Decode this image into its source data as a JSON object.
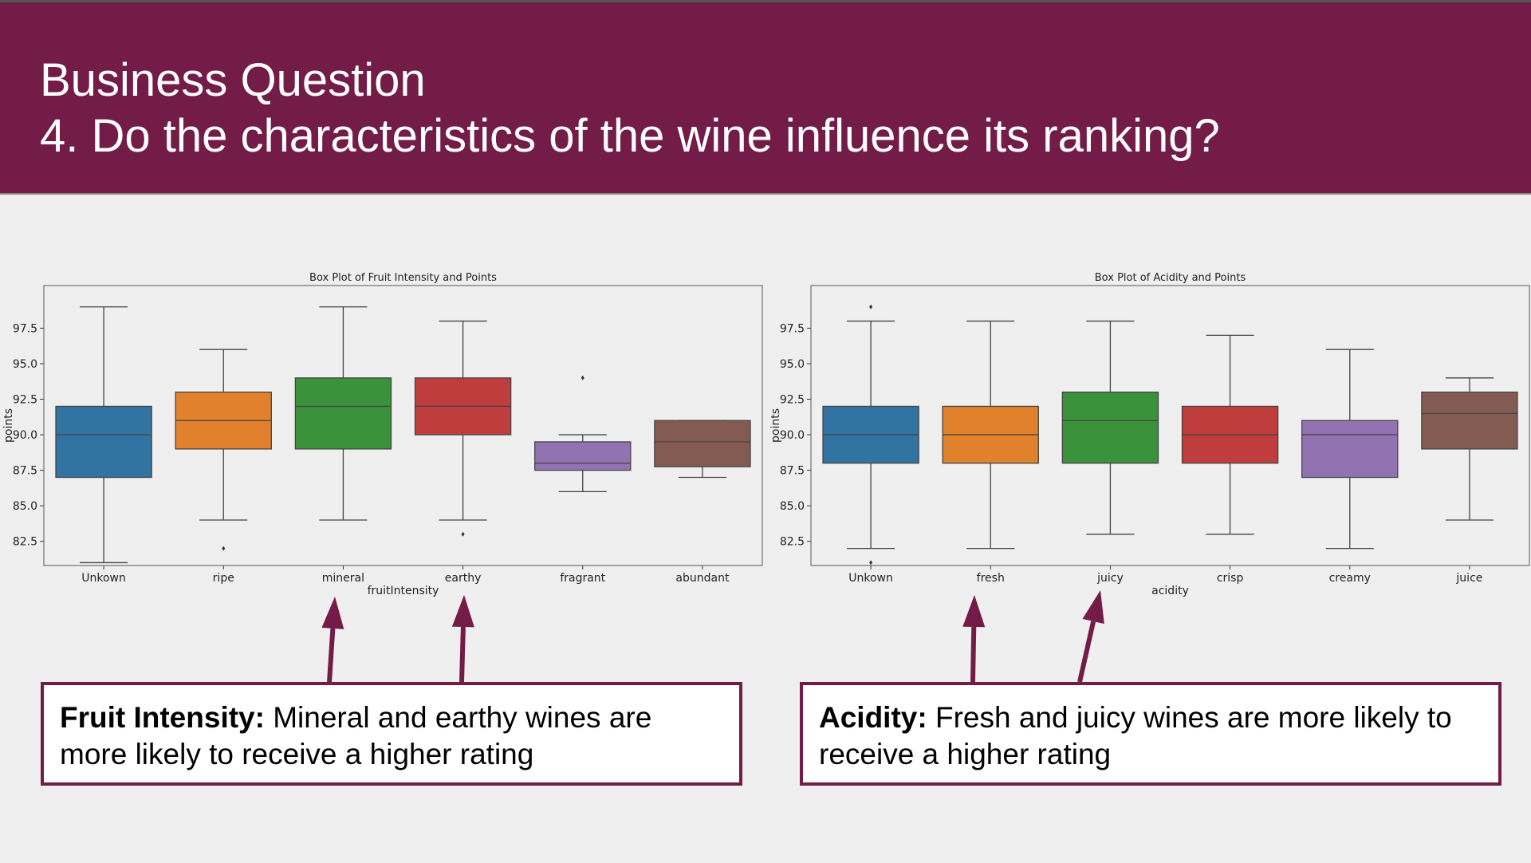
{
  "header": {
    "line1": "Business Question",
    "line2": "4.  Do the characteristics of the wine influence its ranking?"
  },
  "callouts": [
    {
      "bold": "Fruit Intensity:",
      "text": " Mineral and earthy wines are more likely to receive a higher rating"
    },
    {
      "bold": "Acidity:",
      "text": " Fresh and juicy wines are more likely to receive a higher rating"
    }
  ],
  "colors": {
    "header_bg": "#721c47",
    "arrow": "#721c47",
    "palette": [
      "#3274a1",
      "#e1812c",
      "#3a923a",
      "#c03d3e",
      "#9372b2",
      "#845b53"
    ]
  },
  "chart_data": [
    {
      "type": "box",
      "title": "Box Plot of Fruit Intensity and Points",
      "xlabel": "fruitIntensity",
      "ylabel": "points",
      "ylim": [
        80.8,
        100.5
      ],
      "yticks": [
        82.5,
        85.0,
        87.5,
        90.0,
        92.5,
        95.0,
        97.5
      ],
      "ytick_labels": [
        "82.5",
        "85.0",
        "87.5",
        "90.0",
        "92.5",
        "95.0",
        "97.5"
      ],
      "categories": [
        "Unkown",
        "ripe",
        "mineral",
        "earthy",
        "fragrant",
        "abundant"
      ],
      "boxes": [
        {
          "whislo": 81,
          "q1": 87,
          "med": 90,
          "q3": 92,
          "whishi": 99,
          "fliers": []
        },
        {
          "whislo": 84,
          "q1": 89,
          "med": 91,
          "q3": 93,
          "whishi": 96,
          "fliers": [
            82
          ]
        },
        {
          "whislo": 84,
          "q1": 89,
          "med": 92,
          "q3": 94,
          "whishi": 99,
          "fliers": []
        },
        {
          "whislo": 84,
          "q1": 90,
          "med": 92,
          "q3": 94,
          "whishi": 98,
          "fliers": [
            83
          ]
        },
        {
          "whislo": 86,
          "q1": 87.5,
          "med": 88,
          "q3": 89.5,
          "whishi": 90,
          "fliers": [
            94
          ]
        },
        {
          "whislo": 87,
          "q1": 87.75,
          "med": 89.5,
          "q3": 91,
          "whishi": 91,
          "fliers": []
        }
      ]
    },
    {
      "type": "box",
      "title": "Box Plot of Acidity and Points",
      "xlabel": "acidity",
      "ylabel": "points",
      "ylim": [
        80.8,
        100.5
      ],
      "yticks": [
        82.5,
        85.0,
        87.5,
        90.0,
        92.5,
        95.0,
        97.5
      ],
      "ytick_labels": [
        "82.5",
        "85.0",
        "87.5",
        "90.0",
        "92.5",
        "95.0",
        "97.5"
      ],
      "categories": [
        "Unkown",
        "fresh",
        "juicy",
        "crisp",
        "creamy",
        "juice"
      ],
      "boxes": [
        {
          "whislo": 82,
          "q1": 88,
          "med": 90,
          "q3": 92,
          "whishi": 98,
          "fliers": [
            81,
            99
          ]
        },
        {
          "whislo": 82,
          "q1": 88,
          "med": 90,
          "q3": 92,
          "whishi": 98,
          "fliers": []
        },
        {
          "whislo": 83,
          "q1": 88,
          "med": 91,
          "q3": 93,
          "whishi": 98,
          "fliers": []
        },
        {
          "whislo": 83,
          "q1": 88,
          "med": 90,
          "q3": 92,
          "whishi": 97,
          "fliers": []
        },
        {
          "whislo": 82,
          "q1": 87,
          "med": 90,
          "q3": 91,
          "whishi": 96,
          "fliers": []
        },
        {
          "whislo": 84,
          "q1": 89,
          "med": 91.5,
          "q3": 93,
          "whishi": 94,
          "fliers": []
        }
      ]
    }
  ]
}
